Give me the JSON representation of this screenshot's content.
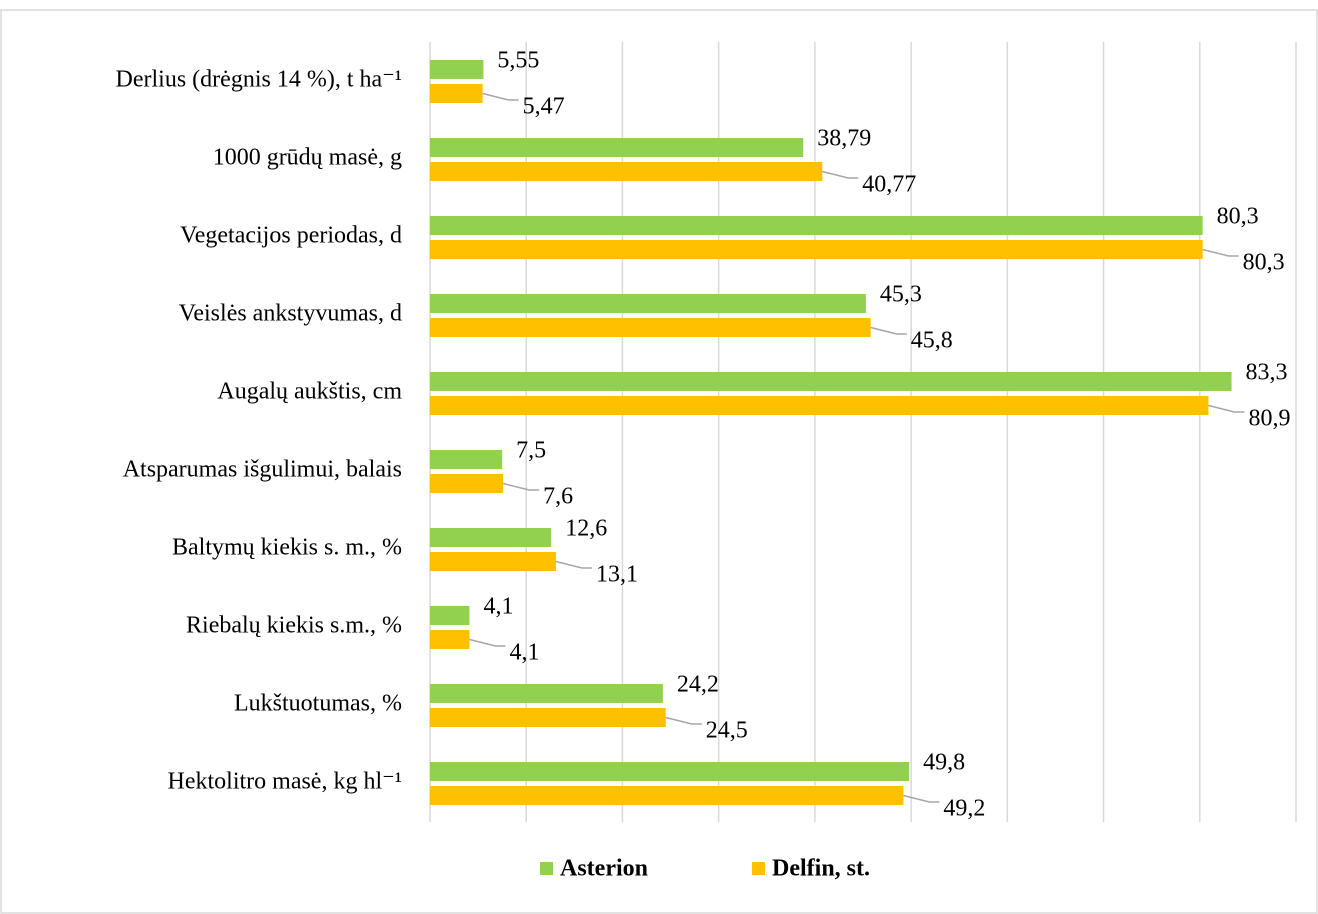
{
  "chart_data": {
    "type": "bar",
    "orientation": "horizontal",
    "categories": [
      "Derlius (drėgnis 14 %), t ha⁻¹",
      "1000 grūdų masė, g",
      "Vegetacijos periodas, d",
      "Veislės ankstyvumas, d",
      "Augalų aukštis, cm",
      "Atsparumas išgulimui, balais",
      "Baltymų kiekis s. m., %",
      "Riebalų kiekis s.m., %",
      "Lukštuotumas,  %",
      "Hektolitro masė, kg hl⁻¹"
    ],
    "series": [
      {
        "name": "Asterion",
        "color": "#92d050",
        "values": [
          5.55,
          38.79,
          80.3,
          45.3,
          83.3,
          7.5,
          12.6,
          4.1,
          24.2,
          49.8
        ],
        "value_labels": [
          "5,55",
          "38,79",
          "80,3",
          "45,3",
          "83,3",
          "7,5",
          "12,6",
          "4,1",
          "24,2",
          "49,8"
        ]
      },
      {
        "name": "Delfin, st.",
        "color": "#ffc000",
        "values": [
          5.47,
          40.77,
          80.3,
          45.8,
          80.9,
          7.6,
          13.1,
          4.1,
          24.5,
          49.2
        ],
        "value_labels": [
          "5,47",
          "40,77",
          "80,3",
          "45,8",
          "80,9",
          "7,6",
          "13,1",
          "4,1",
          "24,5",
          "49,2"
        ]
      }
    ],
    "xlim": [
      0,
      90
    ],
    "xticks": [
      0,
      10,
      20,
      30,
      40,
      50,
      60,
      70,
      80,
      90
    ],
    "grid": true,
    "legend": "bottom"
  }
}
